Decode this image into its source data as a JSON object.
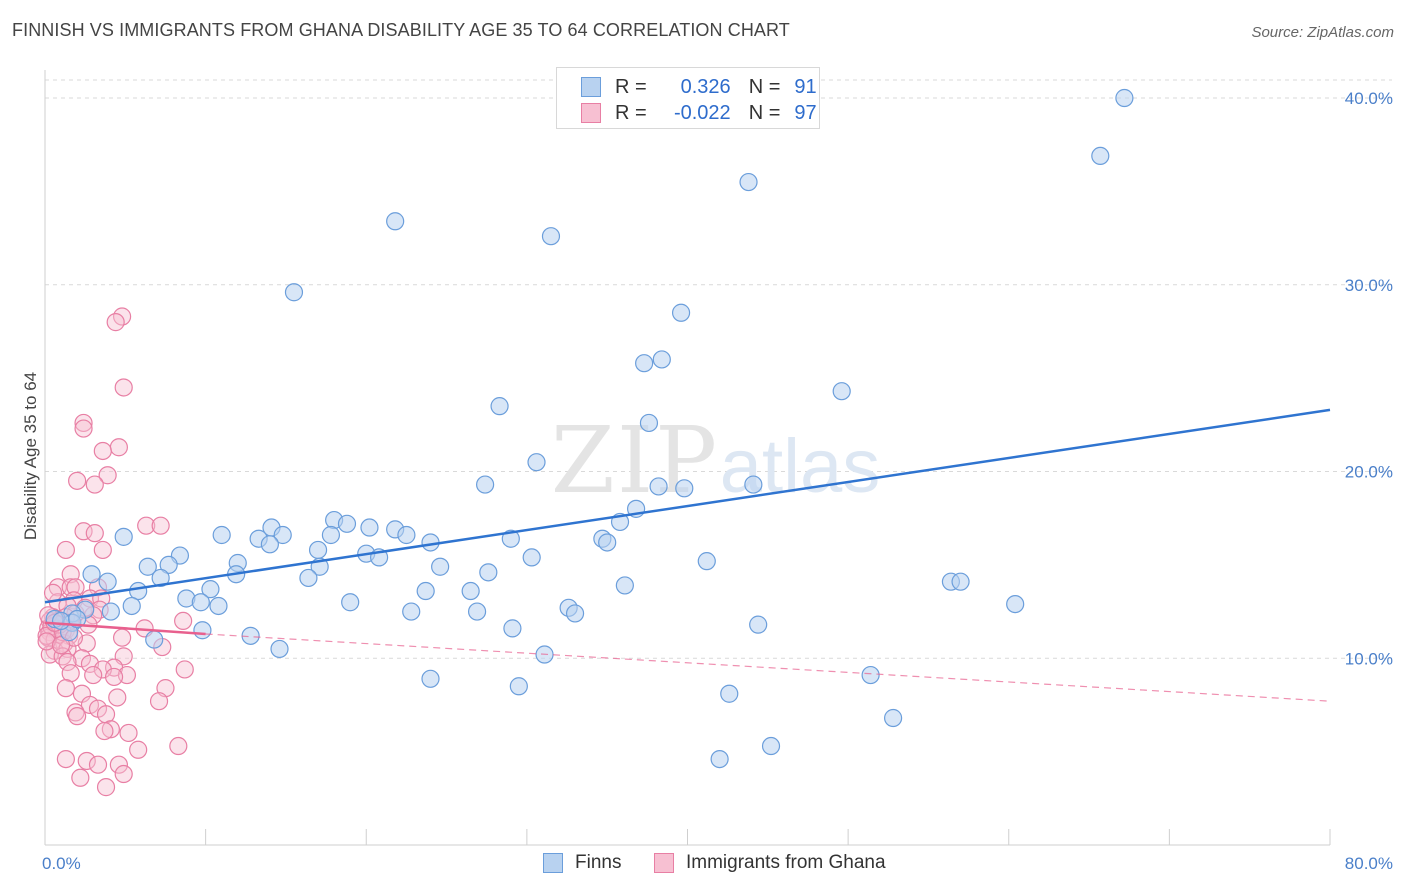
{
  "title": "FINNISH VS IMMIGRANTS FROM GHANA DISABILITY AGE 35 TO 64 CORRELATION CHART",
  "source": "Source: ZipAtlas.com",
  "watermark": {
    "zip": "ZIP",
    "atlas": "atlas"
  },
  "legend": {
    "r_label": "R =",
    "n_label": "N =",
    "finns": {
      "r": "0.326",
      "n": "91",
      "name": "Finns"
    },
    "ghana": {
      "r": "-0.022",
      "n": "97",
      "name": "Immigrants from Ghana"
    }
  },
  "colors": {
    "finns_fill": "#b8d2f0",
    "finns_stroke": "#6b9edb",
    "finns_line": "#2f74d0",
    "ghana_fill": "#f7c0d2",
    "ghana_stroke": "#e87fa4",
    "ghana_line": "#e8608e",
    "axis_text": "#4a7fc9",
    "grid": "#d9d9d9"
  },
  "chart_data": {
    "type": "scatter",
    "title": "FINNISH VS IMMIGRANTS FROM GHANA DISABILITY AGE 35 TO 64 CORRELATION CHART",
    "xlabel": "",
    "ylabel": "Disability Age 35 to 64",
    "xlim": [
      0,
      80
    ],
    "ylim": [
      0,
      41.5
    ],
    "x_tick_labels": [
      "0.0%",
      "80.0%"
    ],
    "y_ticks": [
      10,
      20,
      30,
      40
    ],
    "y_tick_labels": [
      "10.0%",
      "20.0%",
      "30.0%",
      "40.0%"
    ],
    "grid": true,
    "legend_position": "top-center",
    "series": [
      {
        "name": "Finns",
        "r": 0.326,
        "n": 91,
        "trend": {
          "x": [
            0,
            80
          ],
          "y": [
            13.0,
            23.3
          ]
        },
        "points": [
          [
            67.2,
            40.0
          ],
          [
            65.7,
            36.9
          ],
          [
            43.8,
            35.5
          ],
          [
            21.8,
            33.4
          ],
          [
            31.5,
            32.6
          ],
          [
            15.5,
            29.6
          ],
          [
            39.6,
            28.5
          ],
          [
            37.3,
            25.8
          ],
          [
            38.4,
            26.0
          ],
          [
            49.6,
            24.3
          ],
          [
            28.3,
            23.5
          ],
          [
            37.6,
            22.6
          ],
          [
            30.6,
            20.5
          ],
          [
            27.4,
            19.3
          ],
          [
            38.2,
            19.2
          ],
          [
            39.8,
            19.1
          ],
          [
            44.1,
            19.3
          ],
          [
            36.8,
            18.0
          ],
          [
            18.0,
            17.4
          ],
          [
            35.8,
            17.3
          ],
          [
            18.8,
            17.2
          ],
          [
            20.2,
            17.0
          ],
          [
            14.1,
            17.0
          ],
          [
            21.8,
            16.9
          ],
          [
            11.0,
            16.6
          ],
          [
            14.8,
            16.6
          ],
          [
            17.8,
            16.6
          ],
          [
            22.5,
            16.6
          ],
          [
            13.3,
            16.4
          ],
          [
            24.0,
            16.2
          ],
          [
            29.0,
            16.4
          ],
          [
            34.7,
            16.4
          ],
          [
            4.9,
            16.5
          ],
          [
            14.0,
            16.1
          ],
          [
            20.0,
            15.6
          ],
          [
            35.0,
            16.2
          ],
          [
            17.0,
            15.8
          ],
          [
            20.8,
            15.4
          ],
          [
            8.4,
            15.5
          ],
          [
            30.3,
            15.4
          ],
          [
            12.0,
            15.1
          ],
          [
            6.4,
            14.9
          ],
          [
            7.7,
            15.0
          ],
          [
            17.1,
            14.9
          ],
          [
            24.6,
            14.9
          ],
          [
            11.9,
            14.5
          ],
          [
            27.6,
            14.6
          ],
          [
            41.2,
            15.2
          ],
          [
            2.9,
            14.5
          ],
          [
            7.2,
            14.3
          ],
          [
            16.4,
            14.3
          ],
          [
            3.9,
            14.1
          ],
          [
            19.0,
            13.0
          ],
          [
            23.7,
            13.6
          ],
          [
            26.5,
            13.6
          ],
          [
            36.1,
            13.9
          ],
          [
            5.8,
            13.6
          ],
          [
            10.3,
            13.7
          ],
          [
            8.8,
            13.2
          ],
          [
            9.7,
            13.0
          ],
          [
            56.4,
            14.1
          ],
          [
            57.0,
            14.1
          ],
          [
            60.4,
            12.9
          ],
          [
            2.5,
            12.6
          ],
          [
            5.4,
            12.8
          ],
          [
            10.8,
            12.8
          ],
          [
            22.8,
            12.5
          ],
          [
            26.9,
            12.5
          ],
          [
            32.6,
            12.7
          ],
          [
            33.0,
            12.4
          ],
          [
            1.7,
            12.4
          ],
          [
            4.1,
            12.5
          ],
          [
            0.6,
            12.1
          ],
          [
            1.7,
            11.9
          ],
          [
            44.4,
            11.8
          ],
          [
            29.1,
            11.6
          ],
          [
            9.8,
            11.5
          ],
          [
            12.8,
            11.2
          ],
          [
            1.5,
            11.4
          ],
          [
            6.8,
            11.0
          ],
          [
            14.6,
            10.5
          ],
          [
            31.1,
            10.2
          ],
          [
            51.4,
            9.1
          ],
          [
            24.0,
            8.9
          ],
          [
            29.5,
            8.5
          ],
          [
            42.6,
            8.1
          ],
          [
            52.8,
            6.8
          ],
          [
            45.2,
            5.3
          ],
          [
            42.0,
            4.6
          ],
          [
            1.0,
            12.0
          ],
          [
            2.0,
            12.1
          ]
        ]
      },
      {
        "name": "Immigrants from Ghana",
        "r": -0.022,
        "n": 97,
        "trend_solid": {
          "x": [
            0,
            10
          ],
          "y": [
            11.9,
            11.3
          ]
        },
        "trend_dashed": {
          "x": [
            10,
            80
          ],
          "y": [
            11.3,
            7.7
          ]
        },
        "points": [
          [
            4.8,
            28.3
          ],
          [
            4.4,
            28.0
          ],
          [
            4.9,
            24.5
          ],
          [
            2.4,
            22.6
          ],
          [
            2.4,
            22.3
          ],
          [
            4.6,
            21.3
          ],
          [
            3.6,
            21.1
          ],
          [
            3.9,
            19.8
          ],
          [
            2.0,
            19.5
          ],
          [
            3.1,
            19.3
          ],
          [
            6.3,
            17.1
          ],
          [
            7.2,
            17.1
          ],
          [
            2.4,
            16.8
          ],
          [
            3.1,
            16.7
          ],
          [
            1.3,
            15.8
          ],
          [
            3.6,
            15.8
          ],
          [
            1.6,
            14.5
          ],
          [
            0.8,
            13.8
          ],
          [
            1.6,
            13.8
          ],
          [
            1.9,
            13.8
          ],
          [
            3.3,
            13.8
          ],
          [
            1.8,
            13.1
          ],
          [
            2.8,
            13.2
          ],
          [
            3.5,
            13.2
          ],
          [
            0.8,
            13.0
          ],
          [
            1.4,
            12.8
          ],
          [
            3.4,
            12.6
          ],
          [
            1.9,
            12.4
          ],
          [
            0.5,
            12.2
          ],
          [
            1.3,
            12.2
          ],
          [
            3.0,
            12.3
          ],
          [
            0.3,
            12.0
          ],
          [
            0.8,
            12.0
          ],
          [
            1.6,
            11.9
          ],
          [
            2.7,
            11.8
          ],
          [
            0.2,
            11.6
          ],
          [
            0.7,
            11.6
          ],
          [
            1.3,
            11.5
          ],
          [
            0.3,
            11.4
          ],
          [
            0.9,
            11.3
          ],
          [
            1.5,
            11.2
          ],
          [
            0.2,
            11.1
          ],
          [
            0.6,
            11.0
          ],
          [
            1.2,
            10.8
          ],
          [
            2.6,
            10.8
          ],
          [
            4.8,
            11.1
          ],
          [
            6.2,
            11.6
          ],
          [
            0.6,
            10.4
          ],
          [
            1.4,
            10.5
          ],
          [
            0.3,
            10.2
          ],
          [
            1.1,
            10.1
          ],
          [
            2.3,
            10.0
          ],
          [
            4.9,
            10.1
          ],
          [
            7.3,
            10.6
          ],
          [
            1.4,
            9.8
          ],
          [
            2.8,
            9.7
          ],
          [
            4.3,
            9.5
          ],
          [
            3.6,
            9.4
          ],
          [
            1.6,
            9.2
          ],
          [
            3.0,
            9.1
          ],
          [
            5.1,
            9.1
          ],
          [
            8.7,
            9.4
          ],
          [
            4.3,
            9.0
          ],
          [
            1.3,
            8.4
          ],
          [
            2.3,
            8.1
          ],
          [
            4.5,
            7.9
          ],
          [
            7.5,
            8.4
          ],
          [
            2.8,
            7.5
          ],
          [
            3.3,
            7.3
          ],
          [
            1.9,
            7.1
          ],
          [
            3.8,
            7.0
          ],
          [
            2.0,
            6.9
          ],
          [
            7.1,
            7.7
          ],
          [
            4.1,
            6.2
          ],
          [
            5.2,
            6.0
          ],
          [
            3.7,
            6.1
          ],
          [
            8.3,
            5.3
          ],
          [
            5.8,
            5.1
          ],
          [
            2.6,
            4.5
          ],
          [
            3.3,
            4.3
          ],
          [
            1.3,
            4.6
          ],
          [
            4.6,
            4.3
          ],
          [
            4.9,
            3.8
          ],
          [
            2.2,
            3.6
          ],
          [
            3.8,
            3.1
          ],
          [
            0.4,
            11.7
          ],
          [
            0.9,
            11.8
          ],
          [
            1.1,
            11.4
          ],
          [
            0.1,
            11.2
          ],
          [
            1.8,
            11.1
          ],
          [
            0.2,
            12.3
          ],
          [
            2.5,
            12.7
          ],
          [
            0.5,
            13.5
          ],
          [
            0.1,
            10.9
          ],
          [
            1.0,
            10.7
          ],
          [
            8.6,
            12.0
          ],
          [
            0.6,
            11.9
          ]
        ]
      }
    ]
  }
}
